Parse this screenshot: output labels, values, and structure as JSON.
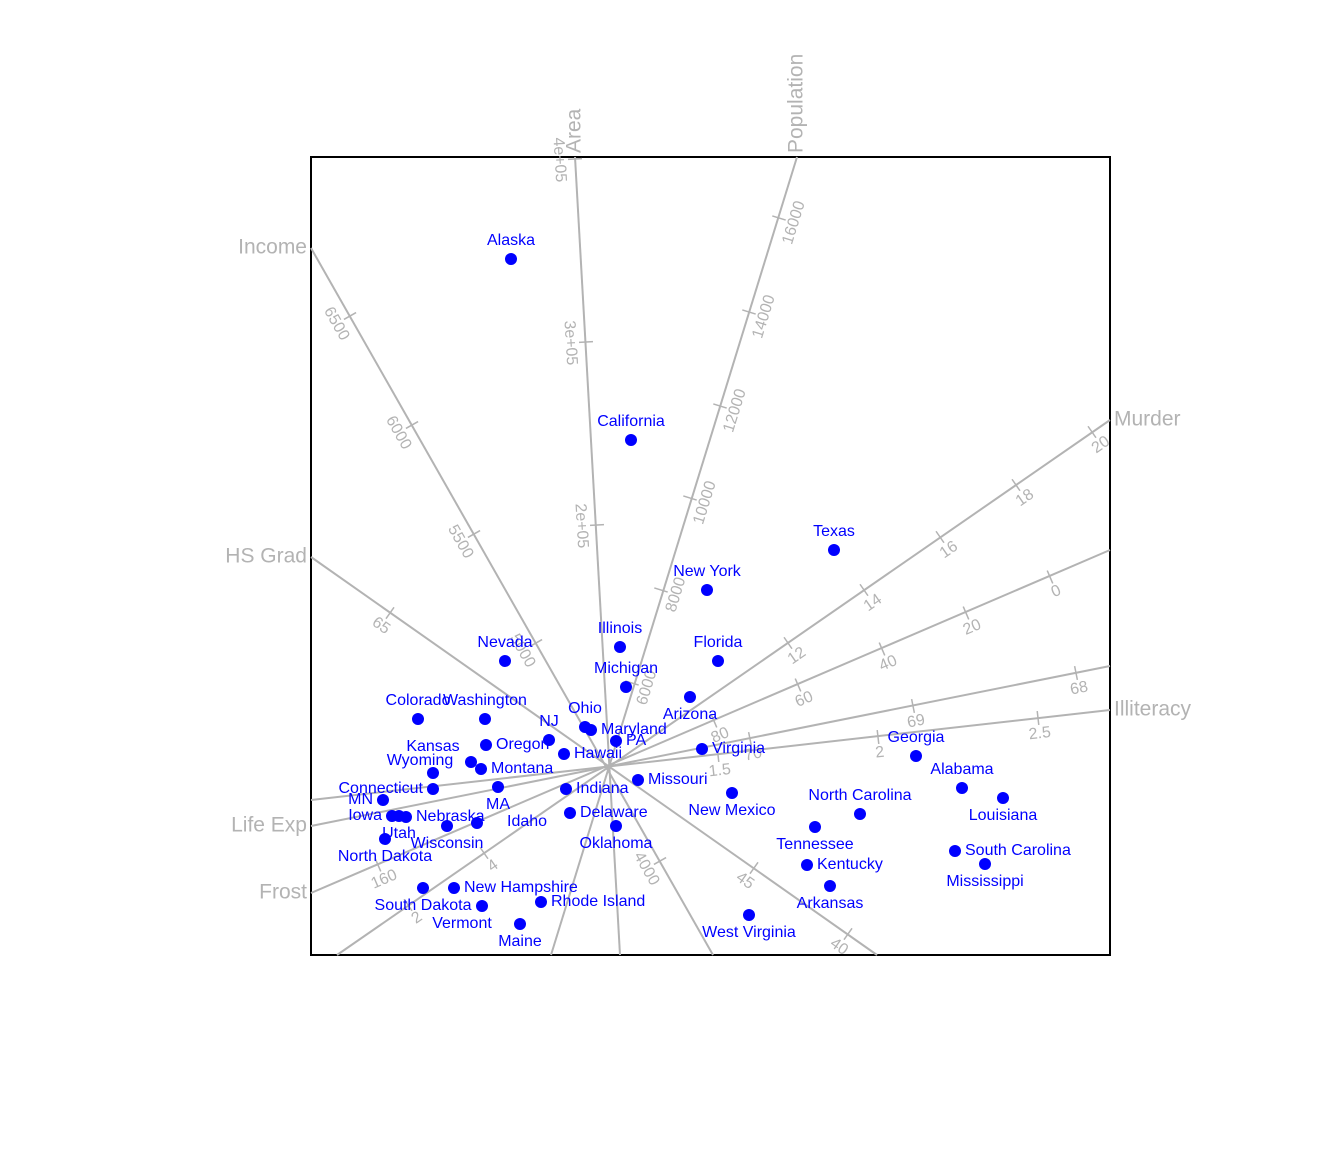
{
  "chart_data": {
    "type": "biplot",
    "xlim": [
      -2.96,
      5.03
    ],
    "ylim": [
      -1.87,
      6.11
    ],
    "points": {
      "color": "#0000ff",
      "labels": [
        "Alaska",
        "California",
        "Texas",
        "New York",
        "Illinois",
        "Florida",
        "Nevada",
        "Michigan",
        "Arizona",
        "Colorado",
        "Washington",
        "Ohio",
        "Maryland",
        "NJ",
        "PA",
        "Oregon",
        "Hawaii",
        "Virginia",
        "Kansas",
        "Montana",
        "Wyoming",
        "Missouri",
        "Indiana",
        "Connecticut",
        "MA",
        "New Mexico",
        "MN",
        "Iowa",
        "Nebraska",
        "Utah",
        "Wisconsin",
        "Idaho",
        "Delaware",
        "Oklahoma",
        "North Carolina",
        "Tennessee",
        "Kentucky",
        "Arkansas",
        "Georgia",
        "Alabama",
        "Louisiana",
        "South Carolina",
        "Mississippi",
        "North Dakota",
        "South Dakota",
        "New Hampshire",
        "Vermont",
        "Rhode Island",
        "Maine",
        "West Virginia"
      ],
      "x": [
        -0.96,
        0.24,
        2.27,
        1.0,
        0.13,
        1.11,
        -1.02,
        0.19,
        0.83,
        -1.89,
        -1.22,
        -0.22,
        -0.16,
        -0.58,
        0.09,
        -1.21,
        -0.43,
        0.95,
        -1.36,
        -1.26,
        -1.74,
        0.31,
        -0.41,
        -1.74,
        -1.09,
        1.25,
        -2.24,
        -2.15,
        -2.01,
        -2.08,
        -1.6,
        -1.3,
        -0.37,
        0.09,
        2.53,
        2.08,
        2.0,
        2.23,
        3.09,
        3.55,
        3.96,
        3.48,
        3.78,
        -2.22,
        -1.84,
        -1.53,
        -1.25,
        -0.66,
        -0.87,
        1.42
      ],
      "y": [
        5.09,
        3.28,
        2.18,
        1.78,
        1.21,
        1.07,
        1.07,
        0.81,
        0.71,
        0.49,
        0.49,
        0.41,
        0.38,
        0.28,
        0.27,
        0.23,
        0.14,
        0.19,
        0.06,
        -0.01,
        -0.05,
        -0.12,
        -0.21,
        -0.21,
        -0.19,
        -0.25,
        -0.32,
        -0.48,
        -0.49,
        -0.48,
        -0.58,
        -0.55,
        -0.45,
        -0.58,
        -0.46,
        -0.59,
        -0.97,
        -1.18,
        0.12,
        -0.2,
        -0.3,
        -0.83,
        -0.96,
        -0.71,
        -1.2,
        -1.2,
        -1.38,
        -1.34,
        -1.56,
        -1.47
      ]
    },
    "axes": [
      {
        "name": "Area",
        "start": [
          0.13,
          -1.87
        ],
        "end": [
          -0.32,
          6.11
        ],
        "ticks": [
          {
            "value": 400000,
            "label": "4e+05",
            "x": -0.32,
            "y": 6.09
          },
          {
            "value": 300000,
            "label": "3e+05",
            "x": -0.21,
            "y": 4.26
          },
          {
            "value": 200000,
            "label": "2e+05",
            "x": -0.1,
            "y": 2.43
          }
        ]
      },
      {
        "name": "Population",
        "start": [
          -0.56,
          -1.87
        ],
        "end": [
          1.9,
          6.11
        ],
        "ticks": [
          {
            "value": 16000,
            "x": 1.72,
            "y": 5.5
          },
          {
            "value": 14000,
            "x": 1.42,
            "y": 4.56
          },
          {
            "value": 12000,
            "x": 1.13,
            "y": 3.62
          },
          {
            "value": 10000,
            "x": 0.83,
            "y": 2.7
          },
          {
            "value": 8000,
            "x": 0.54,
            "y": 1.78
          },
          {
            "value": 6000,
            "x": 0.25,
            "y": 0.85
          }
        ]
      },
      {
        "name": "Murder",
        "start": [
          -2.7,
          -1.87
        ],
        "end": [
          5.03,
          3.48
        ],
        "ticks": [
          {
            "value": 20,
            "x": 4.85,
            "y": 3.36
          },
          {
            "value": 18,
            "x": 4.09,
            "y": 2.83
          },
          {
            "value": 16,
            "x": 3.33,
            "y": 2.31
          },
          {
            "value": 14,
            "x": 2.57,
            "y": 1.78
          },
          {
            "value": 12,
            "x": 1.81,
            "y": 1.25
          },
          {
            "value": 4,
            "x": -1.23,
            "y": -0.85
          },
          {
            "value": 2,
            "x": -1.99,
            "y": -1.37
          }
        ]
      },
      {
        "name": "Frost",
        "start": [
          5.03,
          2.18
        ],
        "end": [
          -2.96,
          -1.25
        ],
        "ticks": [
          {
            "value": 0,
            "x": 4.43,
            "y": 1.91
          },
          {
            "value": 20,
            "x": 3.59,
            "y": 1.55
          },
          {
            "value": 40,
            "x": 2.75,
            "y": 1.19
          },
          {
            "value": 60,
            "x": 1.91,
            "y": 0.83
          },
          {
            "value": 80,
            "x": 1.07,
            "y": 0.47
          },
          {
            "value": 160,
            "x": -2.29,
            "y": -0.97
          }
        ]
      },
      {
        "name": "Illiteracy",
        "start": [
          -2.96,
          -0.32
        ],
        "end": [
          5.03,
          0.58
        ],
        "ticks": [
          {
            "value": 2.5,
            "x": 4.31,
            "y": 0.5
          },
          {
            "value": 2,
            "x": 2.71,
            "y": 0.31
          },
          {
            "value": 1.5,
            "x": 1.11,
            "y": 0.13
          }
        ]
      },
      {
        "name": "Life Exp",
        "start": [
          5.03,
          1.02
        ],
        "end": [
          -2.96,
          -0.58
        ],
        "ticks": [
          {
            "value": 68,
            "x": 4.69,
            "y": 0.95
          },
          {
            "value": 69,
            "x": 3.06,
            "y": 0.62
          },
          {
            "value": 70,
            "x": 1.43,
            "y": 0.29
          }
        ]
      },
      {
        "name": "Income",
        "start": [
          1.06,
          -1.87
        ],
        "end": [
          -2.96,
          5.2
        ],
        "ticks": [
          {
            "value": 6500,
            "x": -2.57,
            "y": 4.52
          },
          {
            "value": 6000,
            "x": -1.95,
            "y": 3.43
          },
          {
            "value": 5500,
            "x": -1.33,
            "y": 2.34
          },
          {
            "value": 5000,
            "x": -0.71,
            "y": 1.25
          },
          {
            "value": 4000,
            "x": 0.53,
            "y": -0.93
          }
        ]
      },
      {
        "name": "HS Grad",
        "start": [
          2.7,
          -1.87
        ],
        "end": [
          -2.96,
          2.11
        ],
        "ticks": [
          {
            "value": 65,
            "x": -2.17,
            "y": 1.55
          },
          {
            "value": 45,
            "x": 1.47,
            "y": -1.0
          },
          {
            "value": 40,
            "x": 2.41,
            "y": -1.66
          }
        ]
      }
    ]
  }
}
